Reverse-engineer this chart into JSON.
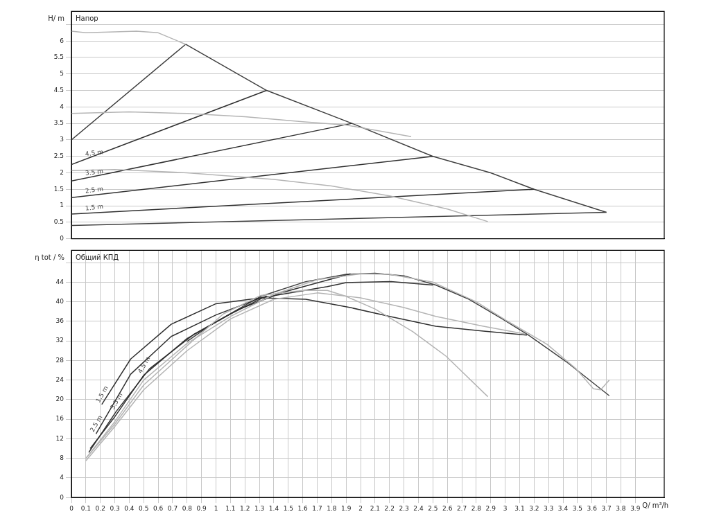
{
  "chart_data": [
    {
      "type": "line",
      "title": "Напор",
      "ylabel": "H/ m",
      "xlim": [
        0,
        4.1
      ],
      "ylim": [
        0,
        6.9
      ],
      "yticks": [
        0,
        0.5,
        1,
        1.5,
        2,
        2.5,
        3,
        3.5,
        4,
        4.5,
        5,
        5.5,
        6,
        {
          "value": 6.5,
          "label": null
        }
      ],
      "grid": "y",
      "legend": false,
      "marker": "none",
      "line_style": "solid",
      "tick_labels": "y",
      "series": [
        {
          "color": "#b4b4b4",
          "x": [
            0,
            0.1,
            0.3,
            0.45,
            0.6,
            0.79
          ],
          "values": [
            6.3,
            6.25,
            6.28,
            6.3,
            6.25,
            5.9
          ]
        },
        {
          "color": "#b4b4b4",
          "x": [
            0,
            0.4,
            0.8,
            1.2,
            1.6,
            1.9,
            2.35
          ],
          "values": [
            3.8,
            3.85,
            3.8,
            3.7,
            3.55,
            3.45,
            3.1
          ]
        },
        {
          "color": "#b4b4b4",
          "x": [
            0,
            0.3,
            0.8,
            1.4,
            1.8,
            2.2,
            2.6,
            2.88
          ],
          "values": [
            2.07,
            2.1,
            2.0,
            1.8,
            1.6,
            1.3,
            0.9,
            0.52
          ]
        },
        {
          "color": "#303030",
          "x": [
            0,
            1.35
          ],
          "values": [
            2.25,
            4.5
          ]
        },
        {
          "color": "#303030",
          "x": [
            0,
            1.94
          ],
          "values": [
            1.75,
            3.5
          ]
        },
        {
          "color": "#303030",
          "x": [
            0,
            2.5
          ],
          "values": [
            1.25,
            2.5
          ]
        },
        {
          "color": "#303030",
          "x": [
            0,
            3.2
          ],
          "values": [
            0.75,
            1.5
          ]
        },
        {
          "color": "#404040",
          "x": [
            0,
            0.79,
            1.35,
            1.94,
            2.5,
            2.9,
            3.2,
            3.7
          ],
          "values": [
            3.0,
            5.9,
            4.5,
            3.5,
            2.5,
            2.0,
            1.5,
            0.8
          ]
        },
        {
          "color": "#404040",
          "x": [
            0,
            3.7
          ],
          "values": [
            0.4,
            0.8
          ]
        }
      ],
      "annotations": [
        {
          "text": "4.5 m",
          "x": 0.1,
          "y": 2.42
        },
        {
          "text": "3.5 m",
          "x": 0.1,
          "y": 1.84
        },
        {
          "text": "2.5 m",
          "x": 0.1,
          "y": 1.3
        },
        {
          "text": "1.5 m",
          "x": 0.1,
          "y": 0.77
        }
      ]
    },
    {
      "type": "line",
      "title": "Общий КПД",
      "ylabel": "η tot / %",
      "xlabel": "Q/ m³/h",
      "xlim": [
        0,
        4.1
      ],
      "ylim": [
        0,
        50.5
      ],
      "xticks": [
        0,
        0.1,
        0.2,
        0.3,
        0.4,
        0.5,
        0.6,
        0.7,
        0.8,
        0.9,
        1,
        1.1,
        1.2,
        1.3,
        1.4,
        1.5,
        1.6,
        1.7,
        1.8,
        1.9,
        2,
        2.1,
        2.2,
        2.3,
        2.4,
        2.5,
        2.6,
        2.7,
        2.8,
        2.9,
        3,
        3.1,
        3.2,
        3.3,
        3.4,
        3.5,
        3.6,
        3.7,
        3.8,
        3.9
      ],
      "yticks": [
        0,
        4,
        8,
        12,
        16,
        20,
        24,
        28,
        32,
        36,
        40,
        44,
        {
          "value": 48,
          "label": null
        }
      ],
      "grid": true,
      "legend": false,
      "marker": "none",
      "line_style": "solid",
      "series": [
        {
          "color": "#b4b4b4",
          "x": [
            0.1,
            0.3,
            0.5,
            0.8,
            1.05,
            1.31,
            1.6,
            1.77,
            1.9,
            2.1,
            2.36,
            2.59,
            2.88
          ],
          "values": [
            8,
            15,
            23,
            31,
            37.5,
            41.3,
            42.3,
            42.3,
            41.1,
            38.5,
            33.9,
            28.9,
            20.6
          ]
        },
        {
          "color": "#b4b4b4",
          "x": [
            0.1,
            0.3,
            0.5,
            0.8,
            1.1,
            1.4,
            1.7,
            2.0,
            2.3,
            2.52,
            2.85,
            3.14
          ],
          "values": [
            7.5,
            14.5,
            22,
            30,
            36.5,
            40.5,
            41.8,
            40.8,
            38.8,
            37,
            35,
            33.4
          ]
        },
        {
          "color": "#b4b4b4",
          "x": [
            0.1,
            0.3,
            0.5,
            0.8,
            1.1,
            1.4,
            1.7,
            2.0,
            2.2,
            2.5,
            2.8,
            3.0,
            3.29,
            3.49,
            3.61,
            3.66,
            3.72
          ],
          "values": [
            8,
            15.5,
            24,
            31.5,
            37,
            41.5,
            44.5,
            45.7,
            45.6,
            44,
            40,
            36.3,
            31.3,
            26.3,
            22.2,
            22,
            24
          ]
        },
        {
          "color": "#303030",
          "x": [
            0.21,
            0.41,
            0.69,
            1.0,
            1.31,
            1.62,
            1.93,
            2.2,
            2.52,
            2.85,
            3.15
          ],
          "values": [
            19,
            28.3,
            35.4,
            39.6,
            40.8,
            40.5,
            38.8,
            37,
            35,
            34,
            33.2
          ]
        },
        {
          "color": "#303030",
          "x": [
            0.17,
            0.41,
            0.69,
            1.0,
            1.31,
            1.77,
            1.9,
            2.21,
            2.5
          ],
          "values": [
            13,
            25.2,
            32.9,
            37.3,
            40.8,
            43.1,
            43.9,
            44.1,
            43.4
          ]
        },
        {
          "color": "#303030",
          "x": [
            0.12,
            0.31,
            0.54,
            0.85,
            1.16,
            1.47,
            1.93
          ],
          "values": [
            9.2,
            17.6,
            26.3,
            33.4,
            38.5,
            42,
            45.7
          ]
        },
        {
          "color": "#303030",
          "x": [
            0.13,
            0.3,
            0.5,
            0.8,
            1.1,
            1.35
          ],
          "values": [
            10,
            16.5,
            25,
            32.5,
            37.5,
            41.2
          ]
        },
        {
          "color": "#404040",
          "x": [
            0.8,
            0.97,
            1.31,
            1.62,
            1.9,
            2.1,
            2.3,
            2.52,
            2.75,
            2.98,
            3.16,
            3.42,
            3.72
          ],
          "values": [
            31.9,
            35.4,
            41.1,
            44.1,
            45.6,
            45.8,
            45.3,
            43.4,
            40.5,
            36.5,
            33.2,
            27.8,
            20.8
          ]
        }
      ],
      "annotations": [
        {
          "text": "1.5 m",
          "x": 0.21,
          "y": 19
        },
        {
          "text": "2.5 m",
          "x": 0.17,
          "y": 13
        },
        {
          "text": "3.5 m",
          "x": 0.31,
          "y": 17.6
        },
        {
          "text": "4.5 m",
          "x": 0.5,
          "y": 25
        }
      ]
    }
  ]
}
